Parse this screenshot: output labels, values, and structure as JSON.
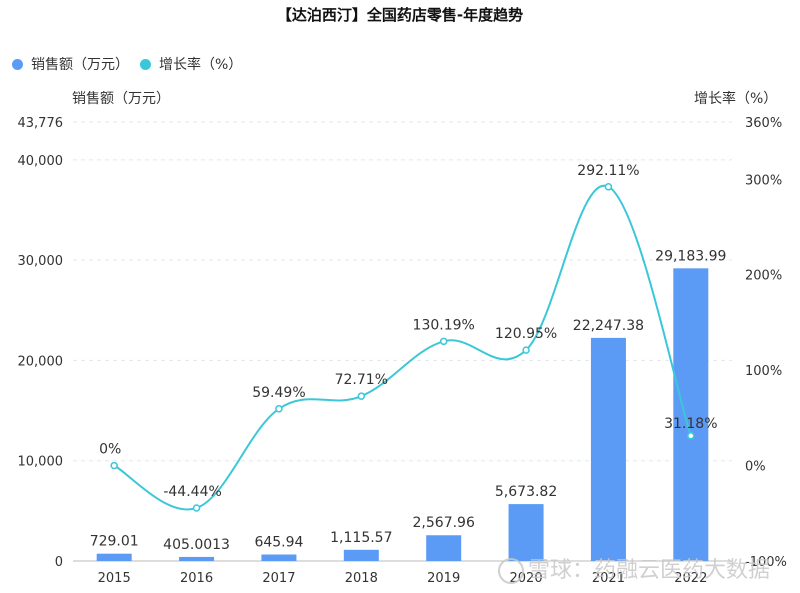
{
  "title": "【达泊西汀】全国药店零售-年度趋势",
  "legend": [
    {
      "name": "销售额（万元）",
      "color": "#5b9bf5"
    },
    {
      "name": "增长率（%）",
      "color": "#3cc7d8"
    }
  ],
  "watermark": "雪球：药融云医药大数据",
  "chart_data": {
    "type": "bar+line",
    "categories": [
      "2015",
      "2016",
      "2017",
      "2018",
      "2019",
      "2020",
      "2021",
      "2022"
    ],
    "series": [
      {
        "name": "销售额（万元）",
        "type": "bar",
        "axis": "left",
        "values": [
          729.01,
          405.0013,
          645.94,
          1115.57,
          2567.96,
          5673.82,
          22247.38,
          29183.99
        ],
        "labels": [
          "729.01",
          "405.0013",
          "645.94",
          "1,115.57",
          "2,567.96",
          "5,673.82",
          "22,247.38",
          "29,183.99"
        ],
        "color": "#5b9bf5"
      },
      {
        "name": "增长率（%）",
        "type": "line",
        "axis": "right",
        "smooth": true,
        "values": [
          0,
          -44.44,
          59.49,
          72.71,
          130.19,
          120.95,
          292.11,
          31.18
        ],
        "labels": [
          "0%",
          "-44.44%",
          "59.49%",
          "72.71%",
          "130.19%",
          "120.95%",
          "292.11%",
          "31.18%"
        ],
        "color": "#3cc7d8"
      }
    ],
    "y_left": {
      "title": "销售额（万元）",
      "min": 0,
      "max": 43776,
      "ticks": [
        0,
        10000,
        20000,
        30000,
        40000,
        43776
      ],
      "tick_labels": [
        "0",
        "10,000",
        "20,000",
        "30,000",
        "40,000",
        "43,776"
      ]
    },
    "y_right": {
      "title": "增长率（%）",
      "min": -100,
      "max": 360,
      "ticks": [
        -100,
        0,
        100,
        200,
        300,
        360
      ],
      "tick_labels": [
        "-100%",
        "0%",
        "100%",
        "200%",
        "300%",
        "360%"
      ]
    },
    "grid": true,
    "legend_position": "top-left"
  }
}
